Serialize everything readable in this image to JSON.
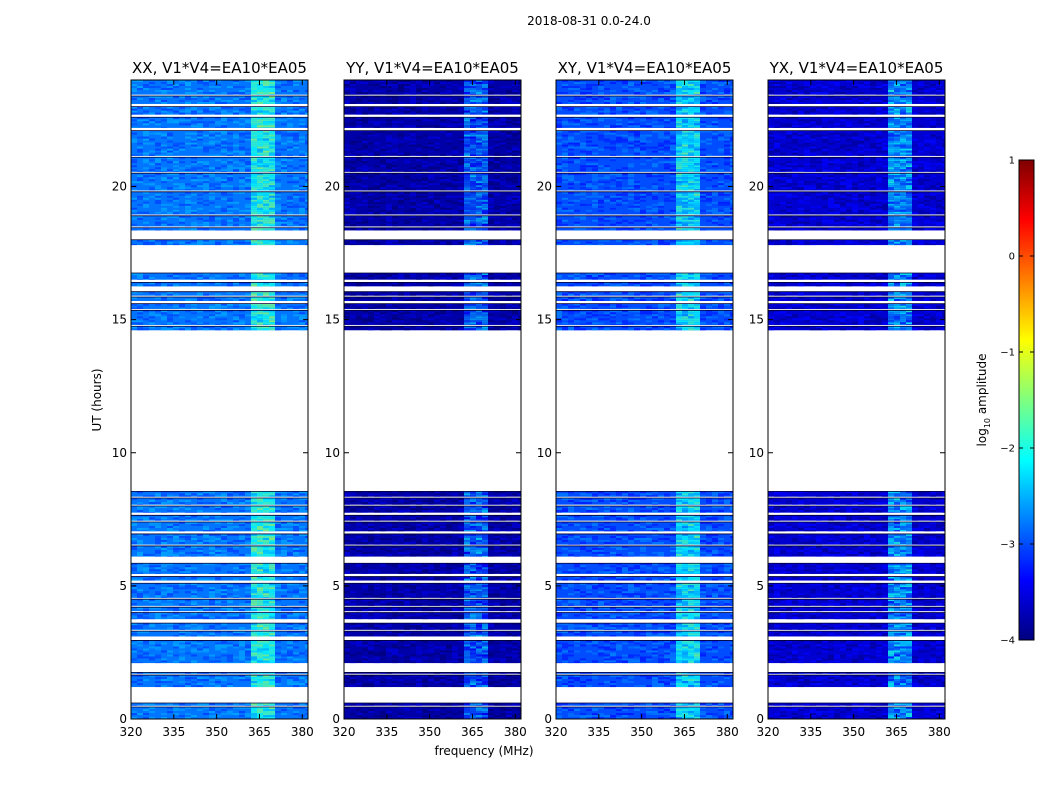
{
  "chart_data": {
    "type": "heatmap",
    "suptitle": "2018-08-31 0.0-24.0",
    "xlabel": "frequency (MHz)",
    "ylabel": "UT (hours)",
    "xlim": [
      320,
      382
    ],
    "ylim": [
      0,
      24
    ],
    "xticks": [
      320,
      335,
      350,
      365,
      380
    ],
    "yticks": [
      0,
      5,
      10,
      15,
      20
    ],
    "colorbar": {
      "label_main": "log",
      "label_sub": "10",
      "label_rest": " amplitude",
      "range": [
        -4,
        1
      ],
      "ticks": [
        1,
        0,
        -1,
        -2,
        -3,
        -4
      ],
      "colormap": [
        "#00007f",
        "#0000ff",
        "#007fff",
        "#00ffff",
        "#7fff7f",
        "#ffff00",
        "#ff7f00",
        "#ff0000",
        "#7f0000"
      ]
    },
    "data_bands_hours": [
      [
        0.0,
        0.45
      ],
      [
        0.5,
        0.6
      ],
      [
        1.2,
        1.65
      ],
      [
        1.7,
        1.75
      ],
      [
        2.1,
        2.95
      ],
      [
        3.1,
        3.3
      ],
      [
        3.35,
        3.6
      ],
      [
        3.75,
        4.0
      ],
      [
        4.05,
        4.2
      ],
      [
        4.25,
        4.5
      ],
      [
        4.55,
        5.1
      ],
      [
        5.2,
        5.35
      ],
      [
        5.45,
        5.85
      ],
      [
        6.1,
        6.5
      ],
      [
        6.55,
        6.95
      ],
      [
        7.05,
        7.4
      ],
      [
        7.45,
        7.65
      ],
      [
        7.75,
        8.0
      ],
      [
        8.05,
        8.3
      ],
      [
        8.35,
        8.55
      ],
      [
        14.6,
        14.75
      ],
      [
        14.8,
        15.35
      ],
      [
        15.4,
        15.6
      ],
      [
        15.7,
        15.85
      ],
      [
        15.9,
        16.05
      ],
      [
        16.25,
        16.4
      ],
      [
        16.5,
        16.75
      ],
      [
        17.8,
        18.0
      ],
      [
        18.35,
        18.45
      ],
      [
        18.5,
        18.9
      ],
      [
        18.95,
        19.8
      ],
      [
        19.85,
        20.5
      ],
      [
        20.55,
        21.1
      ],
      [
        21.15,
        22.1
      ],
      [
        22.2,
        22.6
      ],
      [
        22.7,
        23.0
      ],
      [
        23.1,
        23.4
      ],
      [
        23.45,
        24.0
      ]
    ],
    "rfi_band_mhz": [
      363,
      370
    ],
    "panels": [
      {
        "title": "XX, V1*V4=EA10*EA05",
        "base_level": -2.8,
        "rfi_boost": 1.0
      },
      {
        "title": "YY, V1*V4=EA10*EA05",
        "base_level": -3.8,
        "rfi_boost": 1.1
      },
      {
        "title": "XY, V1*V4=EA10*EA05",
        "base_level": -3.0,
        "rfi_boost": 1.0
      },
      {
        "title": "YX, V1*V4=EA10*EA05",
        "base_level": -3.6,
        "rfi_boost": 1.2
      }
    ]
  }
}
